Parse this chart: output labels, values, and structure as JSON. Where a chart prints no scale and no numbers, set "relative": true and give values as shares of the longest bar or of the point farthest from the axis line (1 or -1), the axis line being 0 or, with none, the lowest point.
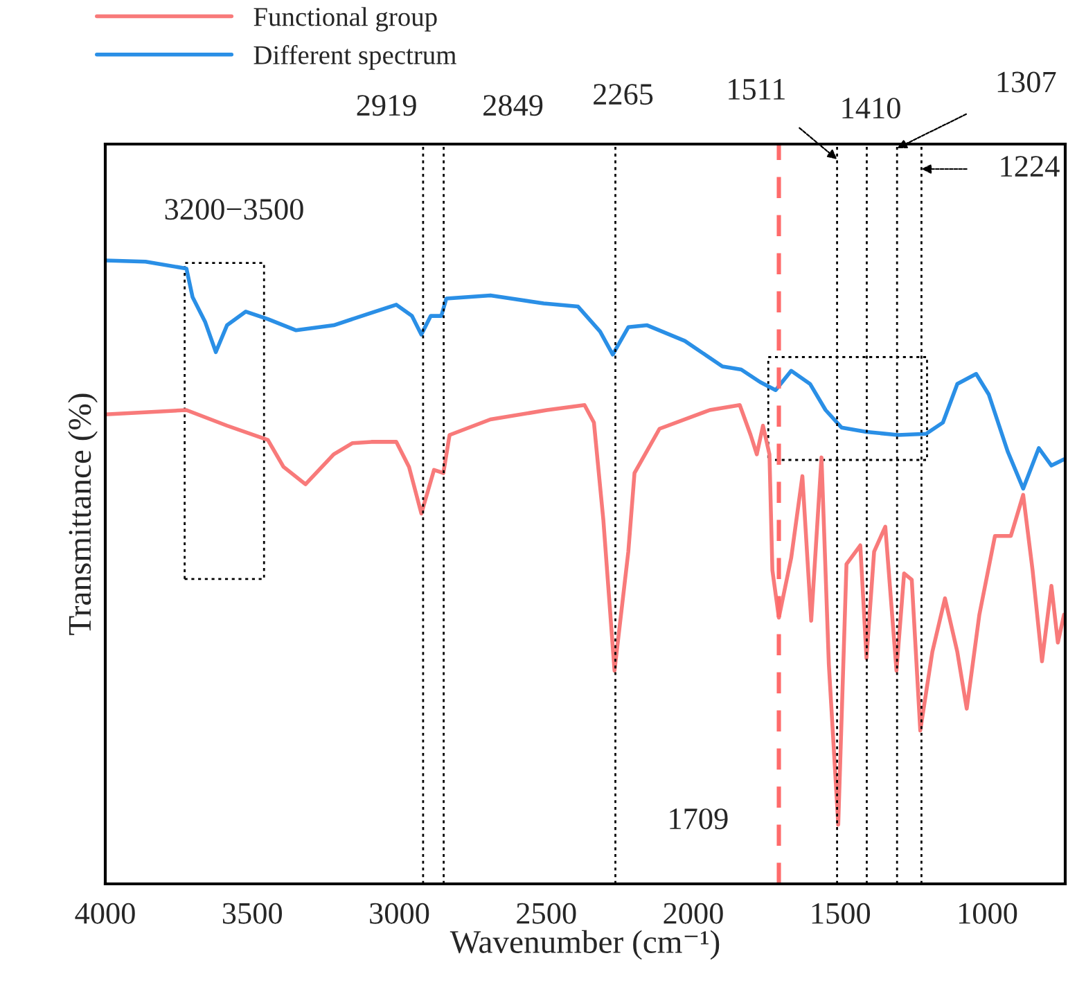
{
  "chart_data": {
    "type": "line",
    "relative": true,
    "xlabel": "Wavenumber (cm⁻¹)",
    "ylabel": "Transmittance (%)",
    "xlim": [
      4000,
      735
    ],
    "xticks": [
      4000,
      3500,
      3000,
      2500,
      2000,
      1500,
      1000
    ],
    "legend": "top left",
    "grid": false,
    "tick_labels": "x",
    "series": [
      {
        "name": "Functional group",
        "color": "#f87a7a",
        "x": [
          4000,
          3724,
          3586,
          3447,
          3394,
          3319,
          3223,
          3159,
          3095,
          3010,
          2967,
          2925,
          2882,
          2850,
          2829,
          2690,
          2498,
          2370,
          2338,
          2306,
          2268,
          2221,
          2200,
          2115,
          1944,
          1842,
          1805,
          1784,
          1763,
          1741,
          1731,
          1709,
          1667,
          1629,
          1599,
          1564,
          1539,
          1507,
          1479,
          1432,
          1411,
          1385,
          1347,
          1309,
          1283,
          1257,
          1228,
          1187,
          1144,
          1102,
          1070,
          1027,
          974,
          920,
          878,
          846,
          814,
          782,
          760,
          739
        ],
        "values": [
          0.753,
          0.76,
          0.735,
          0.712,
          0.669,
          0.641,
          0.689,
          0.707,
          0.709,
          0.709,
          0.669,
          0.594,
          0.664,
          0.659,
          0.72,
          0.745,
          0.76,
          0.768,
          0.74,
          0.584,
          0.342,
          0.533,
          0.659,
          0.73,
          0.76,
          0.768,
          0.72,
          0.689,
          0.735,
          0.689,
          0.503,
          0.427,
          0.523,
          0.654,
          0.422,
          0.684,
          0.352,
          0.095,
          0.513,
          0.543,
          0.362,
          0.533,
          0.573,
          0.342,
          0.498,
          0.488,
          0.246,
          0.372,
          0.458,
          0.372,
          0.281,
          0.432,
          0.558,
          0.558,
          0.624,
          0.503,
          0.357,
          0.478,
          0.387,
          0.432
        ]
      },
      {
        "name": "Different spectrum",
        "color": "#2a8fe6",
        "x": [
          4000,
          3863,
          3724,
          3703,
          3660,
          3624,
          3586,
          3522,
          3447,
          3351,
          3223,
          3095,
          3010,
          2957,
          2925,
          2893,
          2857,
          2840,
          2690,
          2509,
          2392,
          2317,
          2274,
          2221,
          2157,
          2029,
          1901,
          1837,
          1773,
          1720,
          1667,
          1603,
          1550,
          1496,
          1411,
          1304,
          1208,
          1151,
          1102,
          1038,
          995,
          931,
          878,
          825,
          782,
          739
        ],
        "values": [
          1.0,
          0.998,
          0.987,
          0.941,
          0.901,
          0.853,
          0.896,
          0.918,
          0.906,
          0.888,
          0.896,
          0.916,
          0.929,
          0.911,
          0.881,
          0.911,
          0.911,
          0.939,
          0.944,
          0.931,
          0.926,
          0.886,
          0.849,
          0.893,
          0.896,
          0.871,
          0.83,
          0.825,
          0.805,
          0.792,
          0.823,
          0.802,
          0.76,
          0.732,
          0.725,
          0.72,
          0.722,
          0.74,
          0.802,
          0.818,
          0.785,
          0.694,
          0.634,
          0.699,
          0.671,
          0.681
        ]
      }
    ],
    "ref_lines": [
      {
        "axis": "x",
        "value": 2919,
        "label": "2919",
        "color": "#000000",
        "line_style": "dotted"
      },
      {
        "axis": "x",
        "value": 2849,
        "label": "2849",
        "color": "#000000",
        "line_style": "dotted"
      },
      {
        "axis": "x",
        "value": 2265,
        "label": "2265",
        "color": "#000000",
        "line_style": "dotted"
      },
      {
        "axis": "x",
        "value": 1709,
        "label": "1709",
        "color": "#ff6b6b",
        "line_style": "dashed"
      },
      {
        "axis": "x",
        "value": 1511,
        "label": "1511",
        "color": "#000000",
        "line_style": "dotted"
      },
      {
        "axis": "x",
        "value": 1410,
        "label": "1410",
        "color": "#000000",
        "line_style": "dotted"
      },
      {
        "axis": "x",
        "value": 1307,
        "label": "1307",
        "color": "#000000",
        "line_style": "dotted"
      },
      {
        "axis": "x",
        "value": 1224,
        "label": "1224",
        "color": "#000000",
        "line_style": "dotted"
      }
    ],
    "annotations": [
      "3200−3500"
    ]
  }
}
